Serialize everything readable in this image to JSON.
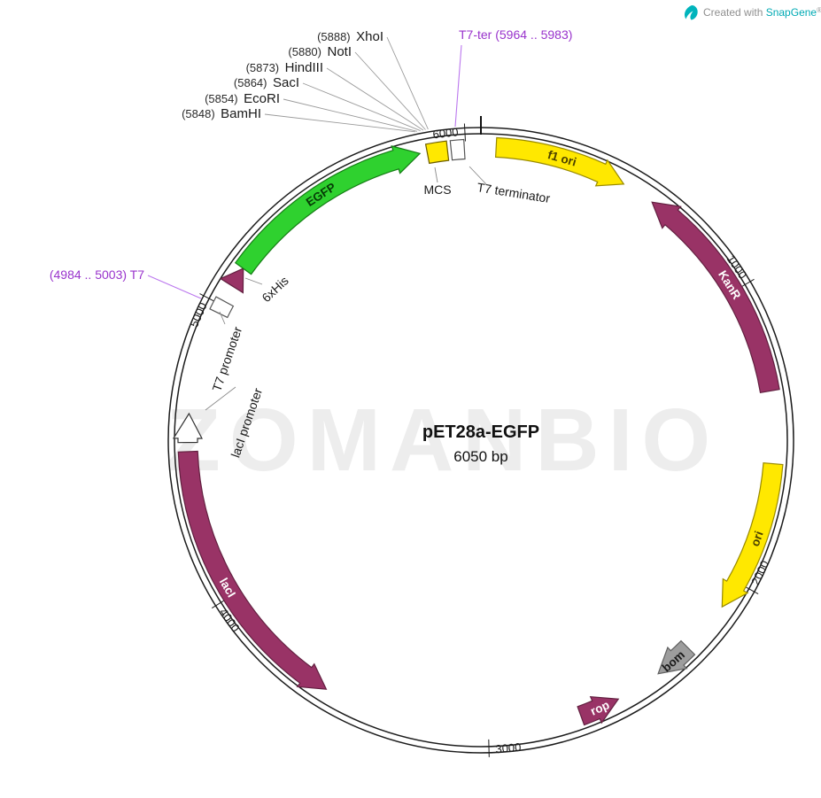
{
  "watermark": "ZOMANBIO",
  "credit": {
    "prefix": "Created with ",
    "brand": "SnapGene",
    "registered": "®"
  },
  "plasmid": {
    "name": "pET28a-EGFP",
    "size_label": "6050 bp",
    "length_bp": 6050,
    "features": [
      {
        "id": "f1-ori",
        "label": "f1 ori",
        "start": 50,
        "end": 490,
        "direction": "forward",
        "shape": "arrow",
        "fill": "#ffe800",
        "stroke": "#998a00",
        "label_color": "#4a4000",
        "label_on_arc": true
      },
      {
        "id": "kanr",
        "label": "KanR",
        "start": 600,
        "end": 1350,
        "direction": "reverse",
        "shape": "arrow",
        "fill": "#993366",
        "stroke": "#622040",
        "label_color": "#ffffff",
        "label_on_arc": true
      },
      {
        "id": "ori",
        "label": "ori",
        "start": 1590,
        "end": 2095,
        "direction": "forward",
        "shape": "arrow",
        "fill": "#ffe800",
        "stroke": "#998a00",
        "label_color": "#4a4000",
        "label_on_arc": true
      },
      {
        "id": "bom",
        "label": "bom",
        "start": 2270,
        "end": 2400,
        "direction": "forward",
        "shape": "arrow",
        "fill": "#9d9d9d",
        "stroke": "#5f5f5f",
        "label_color": "#1a1a1a",
        "label_on_arc": true
      },
      {
        "id": "rop",
        "label": "rop",
        "start": 2555,
        "end": 2690,
        "direction": "reverse",
        "shape": "arrow",
        "fill": "#993366",
        "stroke": "#622040",
        "label_color": "#ffffff",
        "label_on_arc": true
      },
      {
        "id": "laci",
        "label": "lacI",
        "start": 3560,
        "end": 4500,
        "direction": "reverse",
        "shape": "arrow",
        "fill": "#993366",
        "stroke": "#622040",
        "label_color": "#ffffff",
        "label_on_arc": true
      },
      {
        "id": "laci-promoter",
        "label": "lacI promoter",
        "start": 4530,
        "end": 4625,
        "direction": "forward",
        "shape": "arrow",
        "fill": "#ffffff",
        "stroke": "#333333",
        "label_color": "#1a1a1a",
        "label_on_arc": false
      },
      {
        "id": "t7-promoter",
        "label": "T7 promoter",
        "start": 4984,
        "end": 5003,
        "direction": "forward",
        "shape": "box",
        "fill": "#ffffff",
        "stroke": "#555555",
        "label_color": "#1a1a1a",
        "label_on_arc": false
      },
      {
        "id": "6xhis",
        "label": "6xHis",
        "start": 5072,
        "end": 5140,
        "direction": "forward",
        "shape": "arrow",
        "fill": "#993366",
        "stroke": "#622040",
        "label_color": "#1a1a1a",
        "label_on_arc": false
      },
      {
        "id": "egfp",
        "label": "EGFP",
        "start": 5140,
        "end": 5848,
        "direction": "forward",
        "shape": "arrow",
        "fill": "#2fd12f",
        "stroke": "#157d15",
        "label_color": "#063b06",
        "label_on_arc": true
      },
      {
        "id": "mcs",
        "label": "MCS",
        "start": 5848,
        "end": 5964,
        "direction": "forward",
        "shape": "box",
        "fill": "#ffe800",
        "stroke": "#6b5c00",
        "label_color": "#1a1a1a",
        "label_on_arc": false
      },
      {
        "id": "t7-terminator",
        "label": "T7 terminator",
        "start": 5964,
        "end": 5983,
        "direction": "forward",
        "shape": "box",
        "fill": "#ffffff",
        "stroke": "#555555",
        "label_color": "#1a1a1a",
        "label_on_arc": false
      }
    ],
    "ticks": [
      {
        "bp": 1000,
        "label": "1000"
      },
      {
        "bp": 2000,
        "label": "2000"
      },
      {
        "bp": 3000,
        "label": "3000"
      },
      {
        "bp": 4000,
        "label": "4000"
      },
      {
        "bp": 5000,
        "label": "5000"
      },
      {
        "bp": 6000,
        "label": "6000"
      }
    ],
    "restriction_sites": [
      {
        "position_label": "(5888)",
        "enzyme": "XhoI",
        "bp": 5888
      },
      {
        "position_label": "(5880)",
        "enzyme": "NotI",
        "bp": 5880
      },
      {
        "position_label": "(5873)",
        "enzyme": "HindIII",
        "bp": 5873
      },
      {
        "position_label": "(5864)",
        "enzyme": "SacI",
        "bp": 5864
      },
      {
        "position_label": "(5854)",
        "enzyme": "EcoRI",
        "bp": 5854
      },
      {
        "position_label": "(5848)",
        "enzyme": "BamHI",
        "bp": 5848
      }
    ],
    "annotations": [
      {
        "id": "t7-ter",
        "text": "T7-ter  (5964 .. 5983)",
        "bp": 5973,
        "color": "#9933cc"
      },
      {
        "id": "t7",
        "text": "(4984 .. 5003)  T7",
        "bp": 4994,
        "color": "#9933cc"
      }
    ]
  }
}
